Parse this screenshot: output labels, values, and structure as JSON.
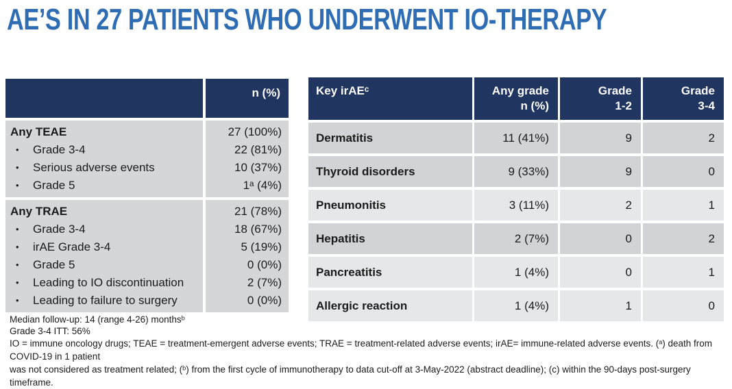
{
  "title": "AE’S IN 27 PATIENTS WHO UNDERWENT IO-THERAPY",
  "colors": {
    "header_navy": "#20355f",
    "title_blue": "#2e6db4",
    "left_body_gray": "#d5d6d8",
    "row_gray": "#d2d3d6",
    "row_light": "#e6e7e9"
  },
  "bullet_char": "•",
  "left_table": {
    "header_value": "n (%)",
    "groups": [
      {
        "rows": [
          {
            "label": "Any TEAE",
            "value": "27 (100%)"
          },
          {
            "label": "Grade 3-4",
            "value": "22 (81%)"
          },
          {
            "label": "Serious adverse events",
            "value": "10 (37%)"
          },
          {
            "label": "Grade 5",
            "value": "1ᵃ (4%)"
          }
        ]
      },
      {
        "rows": [
          {
            "label": "Any TRAE",
            "value": "21 (78%)"
          },
          {
            "label": "Grade 3-4",
            "value": "18 (67%)"
          },
          {
            "label": "irAE Grade 3-4",
            "value": "5 (19%)"
          },
          {
            "label": "Grade 5",
            "value": "0 (0%)"
          },
          {
            "label": "Leading to IO discontinuation",
            "value": "2 (7%)"
          },
          {
            "label": "Leading to failure to surgery",
            "value": "0 (0%)"
          }
        ]
      }
    ],
    "footnotes": [
      "Median follow-up: 14 (range 4-26) monthsᵇ",
      "Grade 3-4 ITT: 56%"
    ]
  },
  "right_table": {
    "headers": [
      "Key irAEᶜ",
      "Any grade\nn (%)",
      "Grade\n1-2",
      "Grade\n3-4"
    ],
    "rows": [
      {
        "name": "Dermatitis",
        "any_grade": "11 (41%)",
        "grade_1_2": "9",
        "grade_3_4": "2"
      },
      {
        "name": "Thyroid disorders",
        "any_grade": "9 (33%)",
        "grade_1_2": "9",
        "grade_3_4": "0"
      },
      {
        "name": "Pneumonitis",
        "any_grade": "3 (11%)",
        "grade_1_2": "2",
        "grade_3_4": "1"
      },
      {
        "name": "Hepatitis",
        "any_grade": "2 (7%)",
        "grade_1_2": "0",
        "grade_3_4": "2"
      },
      {
        "name": "Pancreatitis",
        "any_grade": "1 (4%)",
        "grade_1_2": "0",
        "grade_3_4": "1"
      },
      {
        "name": "Allergic reaction",
        "any_grade": "1 (4%)",
        "grade_1_2": "1",
        "grade_3_4": "0"
      }
    ]
  },
  "footer": {
    "lines": [
      "IO = immune oncology drugs; TEAE = treatment-emergent adverse events; TRAE = treatment-related adverse events; irAE= immune-related adverse events. (ᵃ) death from COVID-19 in 1 patient",
      "was not considered as treatment related; (ᵇ) from the first cycle of immunotherapy to data cut-off at 3-May-2022 (abstract deadline); (c) within the 90-days post-surgery timeframe."
    ]
  }
}
